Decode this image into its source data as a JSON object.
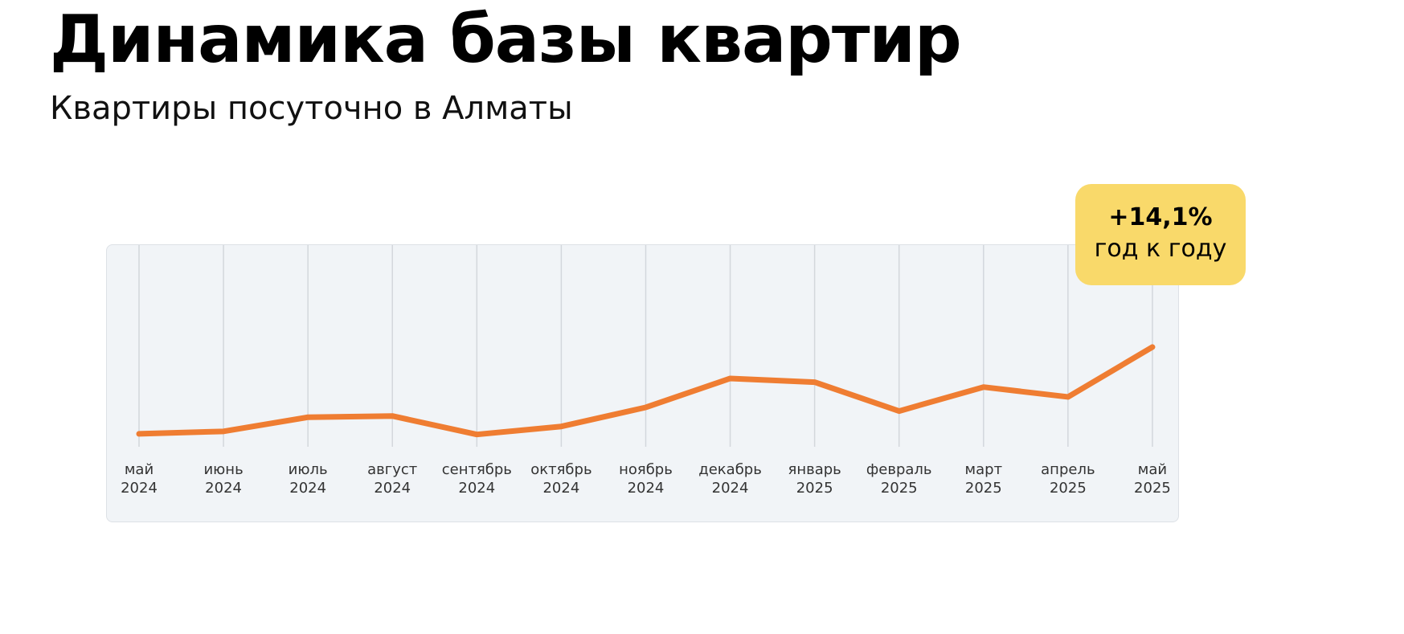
{
  "chart_data": {
    "type": "line",
    "title": "Динамика базы квартир",
    "subtitle": "Квартиры посуточно в Алматы",
    "annotation": {
      "headline": "+14,1%",
      "caption": "год к году"
    },
    "categories": [
      "май\n2024",
      "июнь\n2024",
      "июль\n2024",
      "август\n2024",
      "сентябрь\n2024",
      "октябрь\n2024",
      "ноябрь\n2024",
      "декабрь\n2024",
      "январь\n2025",
      "февраль\n2025",
      "март\n2025",
      "апрель\n2025",
      "май\n2025"
    ],
    "values": [
      100,
      100.4,
      102.7,
      102.9,
      99.9,
      101.2,
      104.3,
      109.0,
      108.4,
      103.7,
      107.6,
      106.0,
      114.1
    ],
    "color": "#ef7d32",
    "ylim": [
      97.9,
      130.8
    ],
    "grid": true
  }
}
